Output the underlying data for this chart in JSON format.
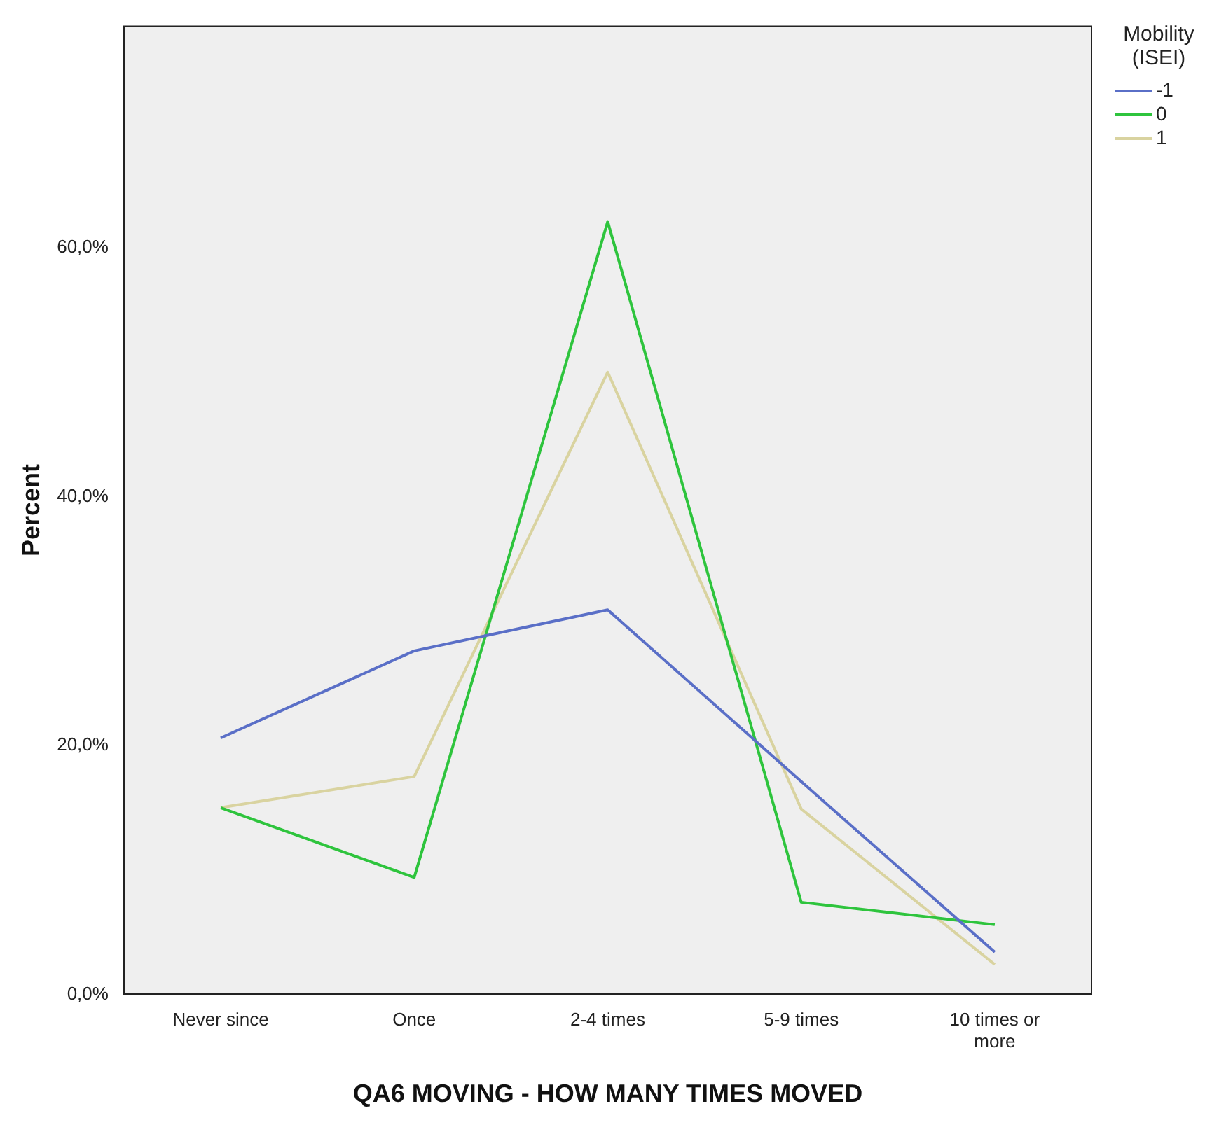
{
  "chart_data": {
    "type": "line",
    "xlabel": "QA6 MOVING - HOW MANY TIMES MOVED",
    "ylabel": "Percent",
    "legend_title": "Mobility (ISEI)",
    "legend": "top right",
    "grid": false,
    "marker": "none",
    "line_style": "solid",
    "categories": [
      "Never since",
      "Once",
      "2-4 times",
      "5-9 times",
      "10 times or more"
    ],
    "ylim": [
      0,
      77.8
    ],
    "yticks": [
      {
        "value": 0,
        "label": "0,0%"
      },
      {
        "value": 20,
        "label": "20,0%"
      },
      {
        "value": 40,
        "label": "40,0%"
      },
      {
        "value": 60,
        "label": "60,0%"
      }
    ],
    "series": [
      {
        "name": "-1",
        "color": "#5a6fc7",
        "values": [
          20.6,
          27.6,
          30.9,
          17.1,
          3.4
        ]
      },
      {
        "name": "0",
        "color": "#2ec43d",
        "values": [
          15.0,
          9.4,
          62.1,
          7.4,
          5.6
        ]
      },
      {
        "name": "1",
        "color": "#d9d3a0",
        "values": [
          15.0,
          17.5,
          50.0,
          14.9,
          2.4
        ]
      }
    ]
  }
}
